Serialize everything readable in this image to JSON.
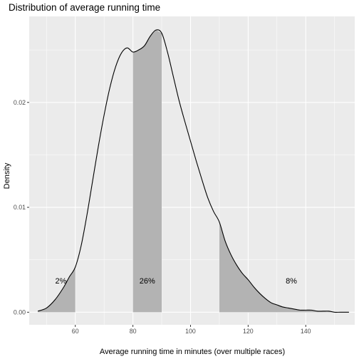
{
  "chart_data": {
    "type": "area",
    "title": "Distribution of average running time",
    "xlabel": "Average running time in minutes (over multiple races)",
    "ylabel": "Density",
    "xlim": [
      44,
      157
    ],
    "ylim": [
      -0.0012,
      0.0282
    ],
    "x_ticks": [
      60,
      80,
      100,
      120,
      140
    ],
    "x_tick_labels": [
      "60",
      "80",
      "100",
      "120",
      "140"
    ],
    "y_ticks": [
      0,
      0.01,
      0.02
    ],
    "y_tick_labels": [
      "0.00",
      "0.01",
      "0.02"
    ],
    "grid": true,
    "density_curve": {
      "x": [
        47,
        50,
        53,
        56,
        58,
        60,
        62,
        64,
        66,
        68,
        70,
        72,
        74,
        76,
        78,
        80,
        82,
        84,
        86,
        88,
        90,
        92,
        94,
        96,
        98,
        100,
        102,
        104,
        106,
        108,
        110,
        112,
        114,
        116,
        118,
        120,
        122,
        124,
        126,
        128,
        130,
        132,
        134,
        136,
        138,
        140,
        142,
        144,
        146,
        148,
        150,
        152,
        155
      ],
      "y": [
        0.0001,
        0.0004,
        0.0012,
        0.0024,
        0.0034,
        0.0043,
        0.0063,
        0.0092,
        0.0125,
        0.0158,
        0.0188,
        0.0214,
        0.0234,
        0.0247,
        0.0252,
        0.0248,
        0.025,
        0.0254,
        0.0263,
        0.0269,
        0.0266,
        0.0248,
        0.0225,
        0.0202,
        0.0182,
        0.0163,
        0.0144,
        0.0126,
        0.0109,
        0.0096,
        0.0086,
        0.0068,
        0.0055,
        0.0045,
        0.0037,
        0.0031,
        0.0024,
        0.0018,
        0.0013,
        0.0009,
        0.0007,
        0.0005,
        0.0004,
        0.0003,
        0.0002,
        0.0002,
        0.0002,
        0.0001,
        0.0001,
        0.0001,
        0.0,
        0.0,
        0.0
      ]
    },
    "shaded_regions": [
      {
        "from": 47,
        "to": 60,
        "label": "2%",
        "label_x": 55,
        "label_y": 0.003
      },
      {
        "from": 80,
        "to": 90,
        "label": "26%",
        "label_x": 85,
        "label_y": 0.003
      },
      {
        "from": 110,
        "to": 155,
        "label": "8%",
        "label_x": 135,
        "label_y": 0.003
      }
    ],
    "colors": {
      "panel_background": "#ebebeb",
      "grid_major": "#ffffff",
      "shade_fill": "#b3b3b3",
      "curve": "#000000"
    }
  }
}
